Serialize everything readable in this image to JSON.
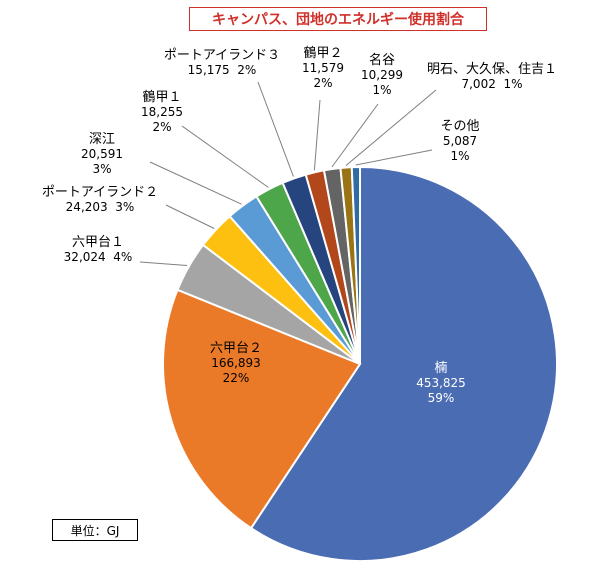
{
  "unit_label": "単位：GJ",
  "chart_data": {
    "type": "pie",
    "title": "キャンパス、団地のエネルギー使用割合",
    "slices": [
      {
        "name": "楠",
        "value": 453825,
        "percent": "59%",
        "color": "#4a6cb3"
      },
      {
        "name": "六甲台２",
        "value": 166893,
        "percent": "22%",
        "color": "#ea7a28"
      },
      {
        "name": "六甲台１",
        "value": 32024,
        "percent": "4%",
        "color": "#a5a5a5"
      },
      {
        "name": "ポートアイランド２",
        "value": 24203,
        "percent": "3%",
        "color": "#fdc010"
      },
      {
        "name": "深江",
        "value": 20591,
        "percent": "3%",
        "color": "#5b9bd5"
      },
      {
        "name": "鶴甲１",
        "value": 18255,
        "percent": "2%",
        "color": "#4ea64a"
      },
      {
        "name": "ポートアイランド３",
        "value": 15175,
        "percent": "2%",
        "color": "#26457e"
      },
      {
        "name": "鶴甲２",
        "value": 11579,
        "percent": "2%",
        "color": "#b2471c"
      },
      {
        "name": "名谷",
        "value": 10299,
        "percent": "1%",
        "color": "#646464"
      },
      {
        "name": "明石、大久保、住吉１",
        "value": 7002,
        "percent": "1%",
        "color": "#9a7414"
      },
      {
        "name": "その他",
        "value": 5087,
        "percent": "1%",
        "color": "#2f6ca3"
      }
    ],
    "value_labels": [
      "453,825",
      "166,893",
      "32,024",
      "24,203",
      "20,591",
      "18,255",
      "15,175",
      "11,579",
      "10,299",
      "7,002",
      "5,087"
    ]
  }
}
